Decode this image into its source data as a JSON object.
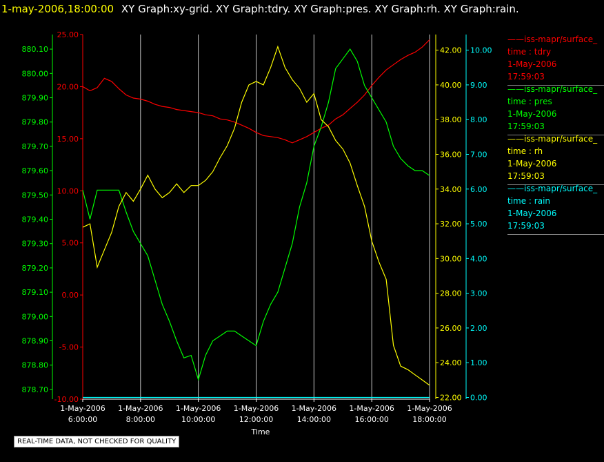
{
  "header": {
    "timestamp": "1-may-2006,18:00:00",
    "title": "XY Graph:xy-grid.  XY Graph:tdry.  XY Graph:pres.  XY Graph:rh.  XY Graph:rain."
  },
  "footer": {
    "note": "REAL-TIME DATA, NOT CHECKED FOR QUALITY",
    "x_title": "Time"
  },
  "colors": {
    "tdry": "#ff0000",
    "pres": "#00ff00",
    "rh": "#ffff00",
    "rain": "#00ffff",
    "grid": "#c8c8c8"
  },
  "legend": [
    {
      "name": "iss-mapr/surface_",
      "var": "time : tdry",
      "date": "1-May-2006",
      "time": "17:59:03",
      "color": "#ff0000"
    },
    {
      "name": "iss-mapr/surface_",
      "var": "time : pres",
      "date": "1-May-2006",
      "time": "17:59:03",
      "color": "#00ff00"
    },
    {
      "name": "iss-mapr/surface_",
      "var": "time : rh",
      "date": "1-May-2006",
      "time": "17:59:03",
      "color": "#ffff00"
    },
    {
      "name": "iss-mapr/surface_",
      "var": "time : rain",
      "date": "1-May-2006",
      "time": "17:59:03",
      "color": "#00ffff"
    }
  ],
  "chart_data": {
    "type": "line",
    "xlabel": "Time",
    "x_ticks": [
      {
        "date": "1-May-2006",
        "time": "6:00:00"
      },
      {
        "date": "1-May-2006",
        "time": "8:00:00"
      },
      {
        "date": "1-May-2006",
        "time": "10:00:00"
      },
      {
        "date": "1-May-2006",
        "time": "12:00:00"
      },
      {
        "date": "1-May-2006",
        "time": "14:00:00"
      },
      {
        "date": "1-May-2006",
        "time": "16:00:00"
      },
      {
        "date": "1-May-2006",
        "time": "18:00:00"
      }
    ],
    "x_hours": [
      6.0,
      6.25,
      6.5,
      6.75,
      7.0,
      7.25,
      7.5,
      7.75,
      8.0,
      8.25,
      8.5,
      8.75,
      9.0,
      9.25,
      9.5,
      9.75,
      10.0,
      10.25,
      10.5,
      10.75,
      11.0,
      11.25,
      11.5,
      11.75,
      12.0,
      12.25,
      12.5,
      12.75,
      13.0,
      13.25,
      13.5,
      13.75,
      14.0,
      14.25,
      14.5,
      14.75,
      15.0,
      15.25,
      15.5,
      15.75,
      16.0,
      16.25,
      16.5,
      16.75,
      17.0,
      17.25,
      17.5,
      17.75,
      18.0
    ],
    "grid": true,
    "axes": [
      {
        "id": "tdry",
        "side": "left-inner",
        "color": "#ff0000",
        "range": [
          -10,
          25
        ],
        "tick_labels": [
          "-10.00",
          "-5.00",
          "0.00",
          "5.00",
          "10.00",
          "15.00",
          "20.00",
          "25.00"
        ]
      },
      {
        "id": "pres",
        "side": "left-outer",
        "color": "#00ff00",
        "range": [
          878.66,
          880.16
        ],
        "tick_labels": [
          "878.70",
          "878.80",
          "878.90",
          "879.00",
          "879.10",
          "879.20",
          "879.30",
          "879.40",
          "879.50",
          "879.60",
          "879.70",
          "879.80",
          "879.90",
          "880.00",
          "880.10"
        ]
      },
      {
        "id": "rh",
        "side": "right-inner",
        "color": "#ffff00",
        "range": [
          21.9,
          42.9
        ],
        "tick_labels": [
          "22.00",
          "24.00",
          "26.00",
          "28.00",
          "30.00",
          "32.00",
          "34.00",
          "36.00",
          "38.00",
          "40.00",
          "42.00"
        ]
      },
      {
        "id": "rain",
        "side": "right-outer",
        "color": "#00ffff",
        "range": [
          -0.05,
          10.45
        ],
        "tick_labels": [
          "0.00",
          "1.00",
          "2.00",
          "3.00",
          "4.00",
          "5.00",
          "6.00",
          "7.00",
          "8.00",
          "9.00",
          "10.00"
        ]
      }
    ],
    "series": [
      {
        "id": "tdry",
        "name": "time : tdry",
        "axis": "tdry",
        "color": "#ff0000",
        "values": [
          20.0,
          19.6,
          19.9,
          20.8,
          20.5,
          19.8,
          19.2,
          18.9,
          18.8,
          18.6,
          18.3,
          18.1,
          18.0,
          17.8,
          17.7,
          17.6,
          17.5,
          17.3,
          17.2,
          16.9,
          16.8,
          16.6,
          16.3,
          16.0,
          15.6,
          15.3,
          15.2,
          15.1,
          14.9,
          14.6,
          14.9,
          15.2,
          15.6,
          16.0,
          16.3,
          16.9,
          17.3,
          17.9,
          18.5,
          19.2,
          20.1,
          20.9,
          21.6,
          22.1,
          22.6,
          23.0,
          23.3,
          23.8,
          24.5
        ]
      },
      {
        "id": "pres",
        "name": "time : pres",
        "axis": "pres",
        "color": "#00ff00",
        "values": [
          879.52,
          879.4,
          879.52,
          879.52,
          879.52,
          879.52,
          879.43,
          879.35,
          879.3,
          879.25,
          879.15,
          879.05,
          878.98,
          878.9,
          878.83,
          878.84,
          878.74,
          878.84,
          878.9,
          878.92,
          878.94,
          878.94,
          878.92,
          878.9,
          878.88,
          878.98,
          879.05,
          879.1,
          879.2,
          879.3,
          879.45,
          879.55,
          879.7,
          879.78,
          879.88,
          880.02,
          880.06,
          880.1,
          880.05,
          879.95,
          879.9,
          879.85,
          879.8,
          879.7,
          879.65,
          879.62,
          879.6,
          879.6,
          879.58
        ]
      },
      {
        "id": "rh",
        "name": "time : rh",
        "axis": "rh",
        "color": "#ffff00",
        "values": [
          31.8,
          32.0,
          29.5,
          30.5,
          31.5,
          33.0,
          33.8,
          33.3,
          34.0,
          34.8,
          34.0,
          33.5,
          33.8,
          34.3,
          33.8,
          34.2,
          34.2,
          34.5,
          35.0,
          35.8,
          36.5,
          37.5,
          39.0,
          40.0,
          40.2,
          40.0,
          41.0,
          42.2,
          41.0,
          40.3,
          39.8,
          39.0,
          39.5,
          38.0,
          37.6,
          36.8,
          36.3,
          35.5,
          34.2,
          33.0,
          31.0,
          29.8,
          28.8,
          25.0,
          23.8,
          23.6,
          23.3,
          23.0,
          22.7
        ]
      },
      {
        "id": "rain",
        "name": "time : rain",
        "axis": "rain",
        "color": "#00ffff",
        "values": [
          0.0,
          0.0,
          0.0,
          0.0,
          0.0,
          0.0,
          0.0,
          0.0,
          0.0,
          0.0,
          0.0,
          0.0,
          0.0,
          0.0,
          0.0,
          0.0,
          0.0,
          0.0,
          0.0,
          0.0,
          0.0,
          0.0,
          0.0,
          0.0,
          0.0,
          0.0,
          0.0,
          0.0,
          0.0,
          0.0,
          0.0,
          0.0,
          0.0,
          0.0,
          0.0,
          0.0,
          0.0,
          0.0,
          0.0,
          0.0,
          0.0,
          0.0,
          0.0,
          0.0,
          0.0,
          0.0,
          0.0,
          0.0,
          0.0
        ]
      }
    ]
  }
}
